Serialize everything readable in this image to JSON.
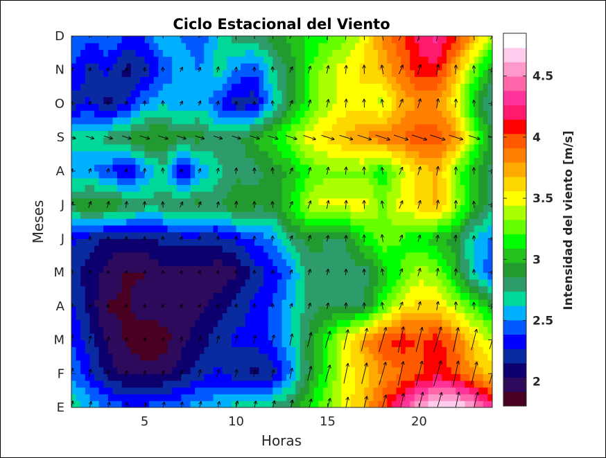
{
  "chart_data": {
    "type": "heatmap",
    "title": "Ciclo Estacional del Viento",
    "xlabel": "Horas",
    "ylabel": "Meses",
    "colorbar_label": "Intensidad del viento [m/s]",
    "x": [
      1,
      2,
      3,
      4,
      5,
      6,
      7,
      8,
      9,
      10,
      11,
      12,
      13,
      14,
      15,
      16,
      17,
      18,
      19,
      20,
      21,
      22,
      23,
      24
    ],
    "xlim": [
      1,
      24
    ],
    "xticks": [
      5,
      10,
      15,
      20
    ],
    "y_categories": [
      "E",
      "F",
      "M",
      "A",
      "M",
      "J",
      "J",
      "A",
      "S",
      "O",
      "N",
      "D"
    ],
    "clim": [
      1.8,
      4.85
    ],
    "colorbar_ticks": [
      2,
      2.5,
      3,
      3.5,
      4,
      4.5
    ],
    "colormap": [
      "#4a0020",
      "#2d0a5c",
      "#0d006e",
      "#0a2aa0",
      "#0000ff",
      "#005aff",
      "#00b0ff",
      "#00d898",
      "#2d9c6a",
      "#239a2f",
      "#22c21a",
      "#00ff00",
      "#66ff00",
      "#aaff00",
      "#ffff00",
      "#ffd700",
      "#ffaa00",
      "#ff8000",
      "#ff5a00",
      "#ff0000",
      "#ff1a6e",
      "#ff3399",
      "#ff66aa",
      "#ff99cc",
      "#ffccee",
      "#ffffff"
    ],
    "values": [
      [
        2.7,
        2.6,
        2.5,
        2.4,
        2.4,
        2.5,
        2.5,
        2.6,
        2.6,
        2.7,
        2.7,
        2.8,
        2.9,
        3.1,
        3.3,
        3.5,
        3.7,
        4.0,
        4.3,
        4.6,
        4.8,
        4.8,
        4.6,
        4.3
      ],
      [
        2.5,
        2.3,
        2.1,
        2.0,
        2.0,
        2.0,
        2.1,
        2.2,
        2.3,
        2.2,
        2.1,
        2.2,
        2.5,
        2.9,
        3.2,
        3.5,
        3.6,
        3.8,
        3.9,
        4.0,
        4.1,
        4.0,
        3.8,
        3.6
      ],
      [
        2.4,
        2.2,
        2.0,
        1.9,
        1.8,
        1.85,
        2.0,
        2.1,
        2.2,
        2.3,
        2.3,
        2.4,
        2.6,
        2.9,
        3.2,
        3.5,
        3.8,
        4.0,
        4.1,
        4.0,
        4.1,
        3.9,
        3.6,
        3.4
      ],
      [
        2.3,
        2.1,
        1.9,
        1.9,
        2.0,
        2.0,
        1.95,
        2.0,
        2.1,
        2.2,
        2.3,
        2.4,
        2.6,
        2.8,
        2.85,
        2.85,
        2.85,
        3.2,
        3.5,
        3.6,
        3.6,
        3.4,
        3.2,
        3.0
      ],
      [
        2.2,
        2.1,
        2.0,
        1.9,
        1.9,
        2.0,
        2.0,
        2.0,
        1.95,
        2.0,
        2.2,
        2.3,
        2.5,
        2.8,
        2.85,
        2.8,
        2.8,
        3.0,
        3.2,
        3.4,
        3.3,
        3.0,
        2.6,
        2.4
      ],
      [
        2.3,
        2.2,
        2.1,
        2.1,
        2.1,
        2.2,
        2.2,
        2.2,
        2.2,
        2.3,
        2.4,
        2.5,
        2.8,
        2.9,
        2.85,
        2.85,
        3.1,
        3.3,
        3.2,
        3.1,
        3.0,
        2.9,
        2.6,
        2.5
      ],
      [
        2.9,
        3.0,
        3.0,
        2.9,
        2.8,
        2.8,
        2.9,
        2.9,
        2.8,
        3.0,
        2.9,
        2.9,
        3.1,
        3.4,
        3.5,
        3.5,
        3.5,
        3.3,
        3.5,
        3.6,
        3.7,
        3.4,
        3.0,
        2.8
      ],
      [
        2.5,
        2.5,
        2.4,
        2.2,
        2.5,
        2.7,
        2.2,
        2.5,
        2.7,
        2.8,
        2.8,
        2.9,
        3.0,
        3.2,
        3.3,
        3.3,
        3.3,
        3.1,
        3.4,
        3.6,
        3.7,
        3.3,
        3.0,
        2.8
      ],
      [
        2.7,
        2.7,
        2.8,
        2.9,
        3.0,
        3.0,
        2.9,
        2.9,
        2.8,
        2.8,
        3.0,
        3.1,
        3.3,
        3.5,
        3.6,
        3.7,
        3.8,
        3.9,
        3.9,
        4.0,
        4.0,
        3.8,
        3.3,
        2.9
      ],
      [
        2.2,
        2.3,
        2.1,
        2.3,
        2.5,
        2.6,
        2.5,
        2.6,
        2.4,
        2.2,
        2.2,
        2.6,
        2.9,
        3.2,
        3.4,
        3.5,
        3.5,
        3.4,
        3.7,
        3.8,
        3.8,
        3.5,
        3.0,
        2.7
      ],
      [
        2.4,
        2.2,
        2.3,
        2.1,
        2.2,
        2.4,
        2.6,
        2.5,
        2.7,
        2.5,
        2.4,
        2.7,
        2.9,
        3.2,
        3.4,
        3.5,
        3.6,
        3.7,
        3.9,
        4.1,
        4.1,
        3.7,
        3.3,
        2.9
      ],
      [
        2.5,
        2.4,
        2.5,
        2.4,
        2.4,
        2.6,
        2.5,
        2.4,
        2.6,
        2.8,
        2.8,
        2.9,
        3.0,
        3.1,
        3.2,
        3.3,
        3.5,
        3.8,
        4.0,
        4.2,
        4.3,
        4.1,
        3.7,
        3.4
      ]
    ]
  }
}
